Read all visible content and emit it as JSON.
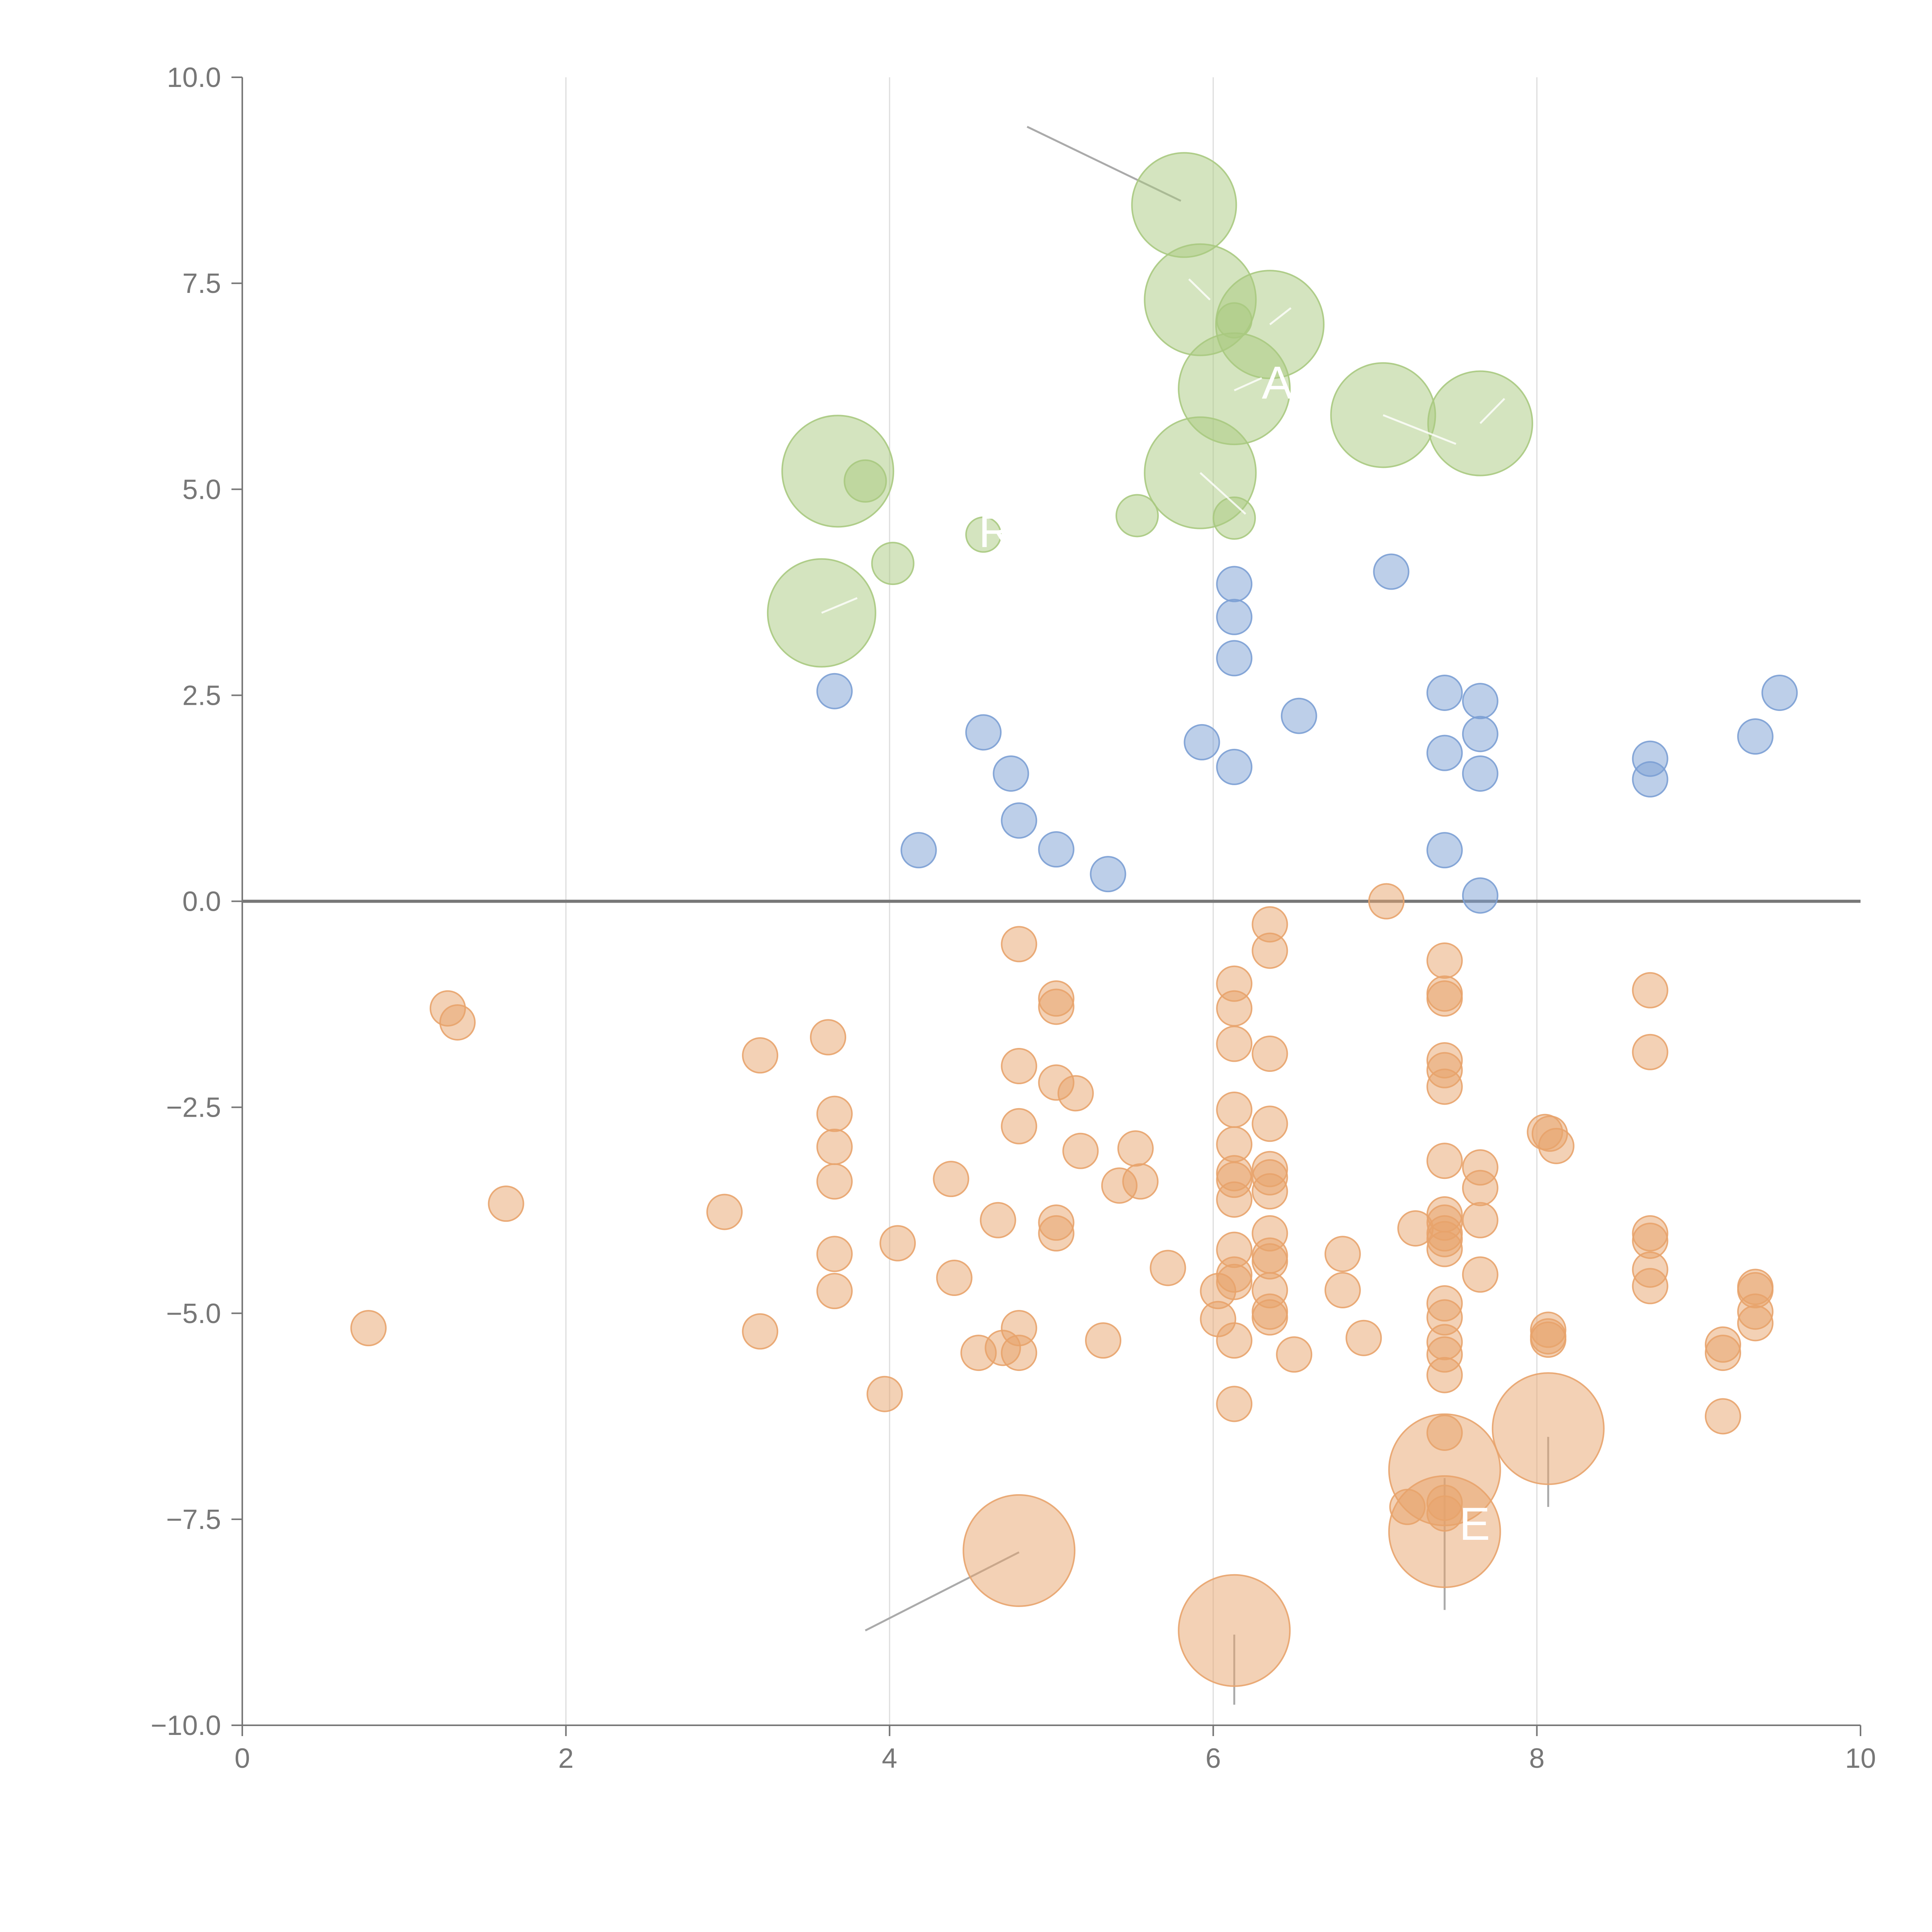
{
  "chart_data": {
    "type": "scatter",
    "title": "",
    "xlabel": "",
    "ylabel": "",
    "xlim": [
      0,
      10
    ],
    "ylim": [
      -10,
      10
    ],
    "x_ticks": [
      "0",
      "2",
      "4",
      "6",
      "8",
      "10"
    ],
    "y_ticks": [
      "10.0",
      "7.5",
      "5.0",
      "2.5",
      "0.0",
      "−2.5",
      "−5.0",
      "−7.5",
      "−10.0"
    ],
    "x_tick_values": [
      0,
      2,
      4,
      6,
      8,
      10
    ],
    "y_tick_values": [
      10,
      7.5,
      5,
      2.5,
      0,
      -2.5,
      -5,
      -7.5,
      -10
    ],
    "grid": "vertical",
    "reference_line_y": 0,
    "legend": "none",
    "colors": {
      "blue": "#7b9fd4",
      "green": "#a9c97f",
      "orange": "#e8a36c"
    },
    "series": [
      {
        "name": "green",
        "color": "#a9c97f",
        "points": [
          [
            5.82,
            8.45,
            3
          ],
          [
            5.92,
            7.3,
            3.2
          ],
          [
            6.13,
            7.05,
            1
          ],
          [
            6.35,
            7.0,
            3.1
          ],
          [
            6.13,
            6.22,
            3.2
          ],
          [
            7.05,
            5.9,
            3
          ],
          [
            7.65,
            5.8,
            3
          ],
          [
            5.92,
            5.2,
            3.2
          ],
          [
            3.68,
            5.22,
            3.2
          ],
          [
            3.85,
            5.1,
            1.2
          ],
          [
            5.53,
            4.68,
            1.2
          ],
          [
            6.13,
            4.65,
            1.2
          ],
          [
            4.58,
            4.45,
            1
          ],
          [
            4.02,
            4.1,
            1.2
          ],
          [
            3.58,
            3.5,
            3.1
          ]
        ]
      },
      {
        "name": "blue",
        "color": "#7b9fd4",
        "points": [
          [
            6.13,
            3.85,
            1
          ],
          [
            7.1,
            4.0,
            1
          ],
          [
            6.13,
            3.45,
            1
          ],
          [
            6.13,
            2.95,
            1
          ],
          [
            3.66,
            2.55,
            1
          ],
          [
            4.58,
            2.05,
            1
          ],
          [
            4.75,
            1.55,
            1
          ],
          [
            4.8,
            0.98,
            1
          ],
          [
            4.18,
            0.62,
            1
          ],
          [
            5.03,
            0.63,
            1
          ],
          [
            5.35,
            0.33,
            1
          ],
          [
            5.93,
            1.93,
            1
          ],
          [
            6.13,
            1.63,
            1
          ],
          [
            6.53,
            2.25,
            1
          ],
          [
            7.43,
            2.53,
            1
          ],
          [
            7.43,
            1.8,
            1
          ],
          [
            7.43,
            0.62,
            1
          ],
          [
            7.65,
            2.43,
            1
          ],
          [
            7.65,
            2.03,
            1
          ],
          [
            7.65,
            1.55,
            1
          ],
          [
            7.65,
            0.07,
            1
          ],
          [
            8.7,
            1.73,
            1
          ],
          [
            8.7,
            1.48,
            1
          ],
          [
            9.35,
            2.0,
            1
          ],
          [
            9.5,
            2.53,
            1
          ]
        ]
      },
      {
        "name": "orange",
        "color": "#e8a36c",
        "points": [
          [
            7.07,
            0.0,
            1
          ],
          [
            4.8,
            -0.52,
            1
          ],
          [
            6.35,
            -0.28,
            1
          ],
          [
            6.35,
            -0.6,
            1
          ],
          [
            7.43,
            -0.72,
            1
          ],
          [
            7.43,
            -1.12,
            1
          ],
          [
            7.43,
            -1.18,
            1
          ],
          [
            8.7,
            -1.08,
            1
          ],
          [
            1.27,
            -1.3,
            1
          ],
          [
            1.33,
            -1.47,
            1
          ],
          [
            3.62,
            -1.65,
            1
          ],
          [
            3.2,
            -1.87,
            1
          ],
          [
            5.03,
            -1.18,
            1
          ],
          [
            5.03,
            -1.28,
            1
          ],
          [
            6.13,
            -1.0,
            1
          ],
          [
            6.13,
            -1.3,
            1
          ],
          [
            6.13,
            -1.73,
            1
          ],
          [
            6.35,
            -1.85,
            1
          ],
          [
            4.8,
            -2.0,
            1
          ],
          [
            5.03,
            -2.2,
            1
          ],
          [
            5.15,
            -2.33,
            1
          ],
          [
            7.43,
            -1.93,
            1
          ],
          [
            7.43,
            -2.05,
            1
          ],
          [
            7.43,
            -2.25,
            1
          ],
          [
            8.7,
            -1.83,
            1
          ],
          [
            3.66,
            -2.58,
            1
          ],
          [
            3.66,
            -2.98,
            1
          ],
          [
            3.66,
            -3.4,
            1
          ],
          [
            4.8,
            -2.73,
            1
          ],
          [
            5.18,
            -3.03,
            1
          ],
          [
            5.52,
            -3.0,
            1
          ],
          [
            5.55,
            -3.4,
            1
          ],
          [
            5.42,
            -3.45,
            1
          ],
          [
            4.38,
            -3.37,
            1
          ],
          [
            6.13,
            -2.53,
            1
          ],
          [
            6.13,
            -2.95,
            1
          ],
          [
            6.13,
            -3.3,
            1
          ],
          [
            6.13,
            -3.38,
            1
          ],
          [
            6.13,
            -3.62,
            1
          ],
          [
            6.35,
            -2.7,
            1
          ],
          [
            6.35,
            -3.25,
            1
          ],
          [
            6.35,
            -3.35,
            1
          ],
          [
            6.35,
            -3.52,
            1
          ],
          [
            7.43,
            -3.15,
            1
          ],
          [
            7.65,
            -3.23,
            1
          ],
          [
            7.65,
            -3.48,
            1
          ],
          [
            8.05,
            -2.8,
            1
          ],
          [
            8.08,
            -2.82,
            1
          ],
          [
            8.12,
            -2.97,
            1
          ],
          [
            1.63,
            -3.67,
            1
          ],
          [
            2.98,
            -3.77,
            1
          ],
          [
            4.05,
            -4.15,
            1
          ],
          [
            4.67,
            -3.87,
            1
          ],
          [
            5.03,
            -3.9,
            1
          ],
          [
            5.03,
            -4.03,
            1
          ],
          [
            3.66,
            -4.28,
            1
          ],
          [
            3.66,
            -4.73,
            1
          ],
          [
            4.4,
            -4.57,
            1
          ],
          [
            5.72,
            -4.45,
            1
          ],
          [
            6.13,
            -4.23,
            1
          ],
          [
            6.13,
            -4.53,
            1
          ],
          [
            6.13,
            -4.62,
            1
          ],
          [
            6.03,
            -4.73,
            1
          ],
          [
            6.35,
            -4.03,
            1
          ],
          [
            6.35,
            -4.3,
            1
          ],
          [
            6.35,
            -4.37,
            1
          ],
          [
            6.35,
            -4.72,
            1
          ],
          [
            6.8,
            -4.28,
            1
          ],
          [
            6.8,
            -4.72,
            1
          ],
          [
            7.25,
            -3.97,
            1
          ],
          [
            7.43,
            -3.8,
            1
          ],
          [
            7.43,
            -3.9,
            1
          ],
          [
            7.43,
            -4.03,
            1
          ],
          [
            7.43,
            -4.1,
            1
          ],
          [
            7.43,
            -4.22,
            1
          ],
          [
            7.65,
            -3.87,
            1
          ],
          [
            7.65,
            -4.53,
            1
          ],
          [
            8.7,
            -4.03,
            1
          ],
          [
            8.7,
            -4.12,
            1
          ],
          [
            8.7,
            -4.47,
            1
          ],
          [
            8.7,
            -4.67,
            1
          ],
          [
            9.35,
            -4.68,
            1
          ],
          [
            9.35,
            -4.72,
            1
          ],
          [
            0.78,
            -5.18,
            1
          ],
          [
            3.2,
            -5.22,
            1
          ],
          [
            3.97,
            -5.98,
            1
          ],
          [
            4.55,
            -5.48,
            1
          ],
          [
            4.7,
            -5.42,
            1
          ],
          [
            4.8,
            -5.18,
            1
          ],
          [
            4.8,
            -5.48,
            1
          ],
          [
            5.32,
            -5.33,
            1
          ],
          [
            6.03,
            -5.07,
            1
          ],
          [
            6.13,
            -5.33,
            1
          ],
          [
            6.13,
            -6.1,
            1
          ],
          [
            6.35,
            -4.98,
            1
          ],
          [
            6.35,
            -5.05,
            1
          ],
          [
            6.5,
            -5.5,
            1
          ],
          [
            6.93,
            -5.3,
            1
          ],
          [
            7.43,
            -4.88,
            1
          ],
          [
            7.43,
            -5.05,
            1
          ],
          [
            7.43,
            -5.35,
            1
          ],
          [
            7.43,
            -5.5,
            1
          ],
          [
            7.43,
            -5.75,
            1
          ],
          [
            7.43,
            -6.45,
            1
          ],
          [
            8.07,
            -5.2,
            1
          ],
          [
            8.07,
            -5.28,
            1
          ],
          [
            8.07,
            -5.32,
            1
          ],
          [
            9.15,
            -5.38,
            1
          ],
          [
            9.15,
            -5.48,
            1
          ],
          [
            9.15,
            -6.25,
            1
          ],
          [
            9.35,
            -4.98,
            1
          ],
          [
            9.35,
            -5.12,
            1
          ],
          [
            7.2,
            -7.35,
            1
          ],
          [
            7.43,
            -7.3,
            1
          ],
          [
            7.43,
            -7.43,
            1
          ],
          [
            4.8,
            -7.88,
            3.2
          ],
          [
            7.43,
            -6.9,
            3.2
          ],
          [
            7.43,
            -7.65,
            3.2
          ],
          [
            8.07,
            -6.4,
            3.2
          ],
          [
            6.13,
            -8.85,
            3.2
          ]
        ]
      }
    ],
    "leaders": [
      {
        "from": [
          4.85,
          9.4
        ],
        "to": [
          5.8,
          8.5
        ],
        "style": "outer"
      },
      {
        "from": [
          4.8,
          -7.9
        ],
        "to": [
          3.85,
          -8.85
        ],
        "style": "outer"
      },
      {
        "from": [
          6.13,
          -8.9
        ],
        "to": [
          6.13,
          -9.75
        ],
        "style": "outer"
      },
      {
        "from": [
          7.43,
          -7.0
        ],
        "to": [
          7.43,
          -8.6
        ],
        "style": "outer"
      },
      {
        "from": [
          8.07,
          -6.5
        ],
        "to": [
          8.07,
          -7.35
        ],
        "style": "outer"
      },
      {
        "from": [
          5.85,
          7.55
        ],
        "to": [
          5.98,
          7.3
        ],
        "style": "inner"
      },
      {
        "from": [
          6.35,
          7.0
        ],
        "to": [
          6.48,
          7.2
        ],
        "style": "inner"
      },
      {
        "from": [
          6.13,
          6.2
        ],
        "to": [
          6.3,
          6.35
        ],
        "style": "inner"
      },
      {
        "from": [
          7.05,
          5.9
        ],
        "to": [
          7.5,
          5.55
        ],
        "style": "inner"
      },
      {
        "from": [
          7.65,
          5.8
        ],
        "to": [
          7.8,
          6.1
        ],
        "style": "inner"
      },
      {
        "from": [
          5.92,
          5.2
        ],
        "to": [
          6.2,
          4.7
        ],
        "style": "inner"
      },
      {
        "from": [
          3.58,
          3.5
        ],
        "to": [
          3.8,
          3.68
        ],
        "style": "inner"
      }
    ],
    "annotations": [
      {
        "text": "A",
        "x": 6.3,
        "y": 6.1
      },
      {
        "text": "R",
        "x": 4.55,
        "y": 4.3
      },
      {
        "text": "E",
        "x": 7.52,
        "y": -7.75
      }
    ]
  }
}
